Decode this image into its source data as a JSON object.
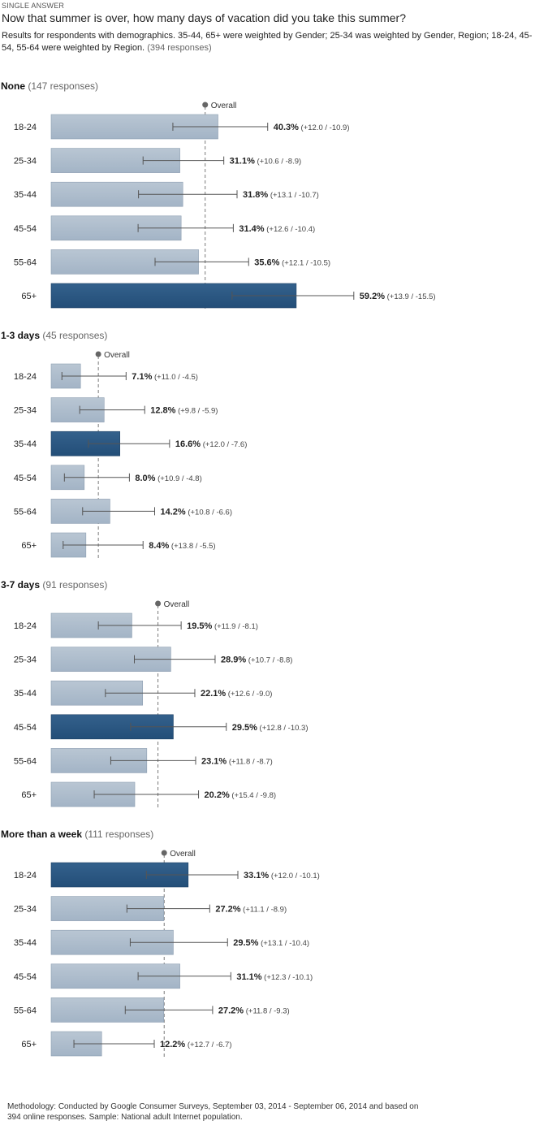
{
  "header": {
    "kicker": "SINGLE ANSWER",
    "question": "Now that summer is over, how many days of vacation did you take this summer?",
    "results_text": "Results for respondents with demographics. 35-44, 65+ were weighted by Gender; 25-34 was weighted by Gender, Region; 18-24, 45-54, 55-64 were weighted by Region.",
    "results_responses": "(394 responses)"
  },
  "colors": {
    "bar_default": "#a3b4c6",
    "bar_highlight": "#234e78",
    "overall_line": "#7a7a7a",
    "error_bar": "#555555"
  },
  "chart_data": {
    "type": "bar",
    "orientation": "horizontal",
    "overall_label": "Overall",
    "groups": [
      {
        "name": "None",
        "responses": "(147 responses)",
        "overall": 37.2,
        "categories": [
          "18-24",
          "25-34",
          "35-44",
          "45-54",
          "55-64",
          "65+"
        ],
        "values": [
          40.3,
          31.1,
          31.8,
          31.4,
          35.6,
          59.2
        ],
        "value_labels": [
          "40.3%",
          "31.1%",
          "31.8%",
          "31.4%",
          "35.6%",
          "59.2%"
        ],
        "error_labels": [
          "(+12.0 / -10.9)",
          "(+10.6 / -8.9)",
          "(+13.1 / -10.7)",
          "(+12.6 / -10.4)",
          "(+12.1 / -10.5)",
          "(+13.9 / -15.5)"
        ],
        "error_plus": [
          12.0,
          10.6,
          13.1,
          12.6,
          12.1,
          13.9
        ],
        "error_minus": [
          10.9,
          8.9,
          10.7,
          10.4,
          10.5,
          15.5
        ],
        "highlight": [
          false,
          false,
          false,
          false,
          false,
          true
        ]
      },
      {
        "name": "1-3 days",
        "responses": "(45 responses)",
        "overall": 11.4,
        "categories": [
          "18-24",
          "25-34",
          "35-44",
          "45-54",
          "55-64",
          "65+"
        ],
        "values": [
          7.1,
          12.8,
          16.6,
          8.0,
          14.2,
          8.4
        ],
        "value_labels": [
          "7.1%",
          "12.8%",
          "16.6%",
          "8.0%",
          "14.2%",
          "8.4%"
        ],
        "error_labels": [
          "(+11.0 / -4.5)",
          "(+9.8 / -5.9)",
          "(+12.0 / -7.6)",
          "(+10.9 / -4.8)",
          "(+10.8 / -6.6)",
          "(+13.8 / -5.5)"
        ],
        "error_plus": [
          11.0,
          9.8,
          12.0,
          10.9,
          10.8,
          13.8
        ],
        "error_minus": [
          4.5,
          5.9,
          7.6,
          4.8,
          6.6,
          5.5
        ],
        "highlight": [
          false,
          false,
          true,
          false,
          false,
          false
        ]
      },
      {
        "name": "3-7 days",
        "responses": "(91 responses)",
        "overall": 25.8,
        "categories": [
          "18-24",
          "25-34",
          "35-44",
          "45-54",
          "55-64",
          "65+"
        ],
        "values": [
          19.5,
          28.9,
          22.1,
          29.5,
          23.1,
          20.2
        ],
        "value_labels": [
          "19.5%",
          "28.9%",
          "22.1%",
          "29.5%",
          "23.1%",
          "20.2%"
        ],
        "error_labels": [
          "(+11.9 / -8.1)",
          "(+10.7 / -8.8)",
          "(+12.6 / -9.0)",
          "(+12.8 / -10.3)",
          "(+11.8 / -8.7)",
          "(+15.4 / -9.8)"
        ],
        "error_plus": [
          11.9,
          10.7,
          12.6,
          12.8,
          11.8,
          15.4
        ],
        "error_minus": [
          8.1,
          8.8,
          9.0,
          10.3,
          8.7,
          9.8
        ],
        "highlight": [
          false,
          false,
          false,
          true,
          false,
          false
        ]
      },
      {
        "name": "More than a week",
        "responses": "(111 responses)",
        "overall": 27.3,
        "categories": [
          "18-24",
          "25-34",
          "35-44",
          "45-54",
          "55-64",
          "65+"
        ],
        "values": [
          33.1,
          27.2,
          29.5,
          31.1,
          27.2,
          12.2
        ],
        "value_labels": [
          "33.1%",
          "27.2%",
          "29.5%",
          "31.1%",
          "27.2%",
          "12.2%"
        ],
        "error_labels": [
          "(+12.0 / -10.1)",
          "(+11.1 / -8.9)",
          "(+13.1 / -10.4)",
          "(+12.3 / -10.1)",
          "(+11.8 / -9.3)",
          "(+12.7 / -6.7)"
        ],
        "error_plus": [
          12.0,
          11.1,
          13.1,
          12.3,
          11.8,
          12.7
        ],
        "error_minus": [
          10.1,
          8.9,
          10.4,
          10.1,
          9.3,
          6.7
        ],
        "highlight": [
          true,
          false,
          false,
          false,
          false,
          false
        ]
      }
    ]
  },
  "footer": {
    "methodology": "Methodology: Conducted by Google Consumer Surveys, September 03, 2014 - September 06, 2014 and based on 394 online responses. Sample: National adult Internet population."
  }
}
